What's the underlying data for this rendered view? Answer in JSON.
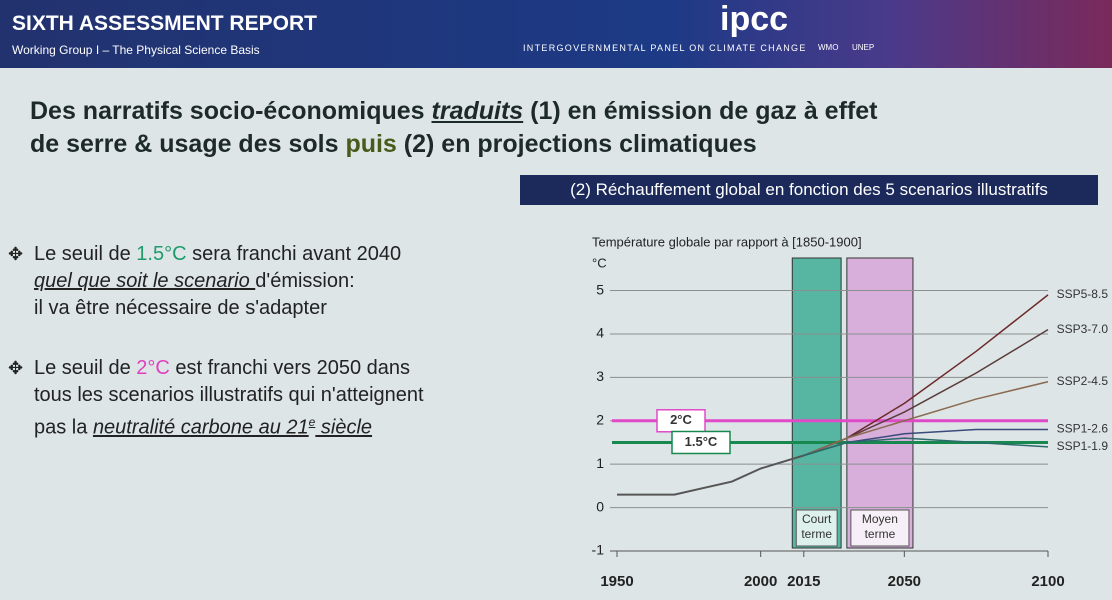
{
  "header": {
    "title": "SIXTH ASSESSMENT REPORT",
    "subtitle": "Working Group I – The Physical Science Basis",
    "logo": "ipcc",
    "organization": "INTERGOVERNMENTAL PANEL ON CLIMATE CHANGE",
    "partners": [
      "WMO",
      "UNEP"
    ]
  },
  "title": {
    "lines": [
      [
        "Des narratifs socio-économiques ",
        "traduits",
        " (1) en émission de gaz à effet"
      ],
      [
        "de serre & usage des sols ",
        "puis",
        " (2) en projections climatiques"
      ]
    ]
  },
  "banner": "(2) Réchauffement global en fonction des 5 scenarios illustratifs",
  "bullets": [
    {
      "lines": [
        [
          "Le seuil de ",
          "1.5°C",
          " sera franchi avant 2040"
        ],
        [
          "quel que soit le scenario ",
          "d'émission:"
        ],
        [
          "il va être nécessaire de s'adapter"
        ]
      ]
    },
    {
      "lines": [
        [
          "Le seuil de ",
          "2°C",
          " est franchi vers 2050 dans"
        ],
        [
          "tous les scenarios illustratifs qui n'atteignent"
        ],
        [
          "pas la ",
          "neutralité carbone au 21",
          "e",
          " siècle"
        ]
      ]
    }
  ],
  "chart_data": {
    "type": "line",
    "title": "Température globale par rapport à [1850-1900]",
    "y_label": "°C",
    "x": [
      1950,
      1960,
      1970,
      1980,
      1990,
      2000,
      2010,
      2015,
      2030,
      2050,
      2075,
      2100
    ],
    "xlim": [
      1950,
      2100
    ],
    "xticks": [
      1950,
      2000,
      2015,
      2050,
      2100
    ],
    "ylim": [
      -1,
      5.75
    ],
    "yticks": [
      -1,
      0,
      1,
      2,
      3,
      4,
      5
    ],
    "grid": true,
    "series": [
      {
        "color": "#555555",
        "values": [
          0.3,
          0.3,
          0.3,
          0.45,
          0.6,
          0.9,
          1.1,
          1.2,
          null,
          null,
          null,
          null
        ]
      },
      {
        "name": "SSP5-8.5",
        "color": "#6e2a2a",
        "values": [
          null,
          null,
          null,
          null,
          null,
          null,
          null,
          1.2,
          1.6,
          2.4,
          3.6,
          4.9
        ]
      },
      {
        "name": "SSP3-7.0",
        "color": "#5a3c3c",
        "values": [
          null,
          null,
          null,
          null,
          null,
          null,
          null,
          1.2,
          1.6,
          2.2,
          3.1,
          4.1
        ]
      },
      {
        "name": "SSP2-4.5",
        "color": "#8a6a50",
        "values": [
          null,
          null,
          null,
          null,
          null,
          null,
          null,
          1.2,
          1.6,
          2.0,
          2.5,
          2.9
        ]
      },
      {
        "name": "SSP1-2.6",
        "color": "#3a4a7a",
        "values": [
          null,
          null,
          null,
          null,
          null,
          null,
          null,
          1.2,
          1.5,
          1.7,
          1.8,
          1.8
        ]
      },
      {
        "name": "SSP1-1.9",
        "color": "#2a6a6a",
        "values": [
          null,
          null,
          null,
          null,
          null,
          null,
          null,
          1.2,
          1.5,
          1.6,
          1.5,
          1.4
        ]
      }
    ],
    "thresholds": [
      {
        "value": 2,
        "label": "2°C",
        "color": "#e04ac8"
      },
      {
        "value": 1.5,
        "label": "1.5°C",
        "color": "#17894e"
      }
    ],
    "periods": [
      {
        "range": [
          2011,
          2028
        ],
        "label": [
          "Court",
          "terme"
        ],
        "color": "#3fae95"
      },
      {
        "range": [
          2030,
          2053
        ],
        "label": [
          "Moyen",
          "terme"
        ],
        "color": "#d7a6d8"
      }
    ]
  }
}
